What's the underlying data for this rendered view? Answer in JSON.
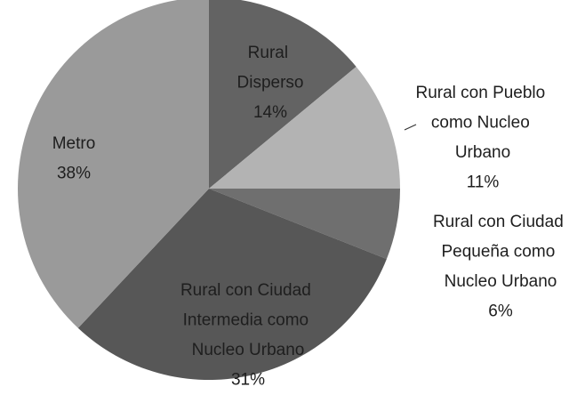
{
  "chart_data": {
    "type": "pie",
    "categories": [
      "Rural Disperso",
      "Rural con Pueblo como Nucleo Urbano",
      "Rural con Ciudad Pequeña como Nucleo Urbano",
      "Rural con Ciudad Intermedia como Nucleo Urbano",
      "Metro"
    ],
    "values": [
      14,
      11,
      6,
      31,
      38
    ],
    "value_labels": [
      "14%",
      "11%",
      "6%",
      "31%",
      "38%"
    ],
    "colors": [
      "#636363",
      "#b3b3b3",
      "#6f6f6f",
      "#575757",
      "#9a9a9a"
    ]
  }
}
